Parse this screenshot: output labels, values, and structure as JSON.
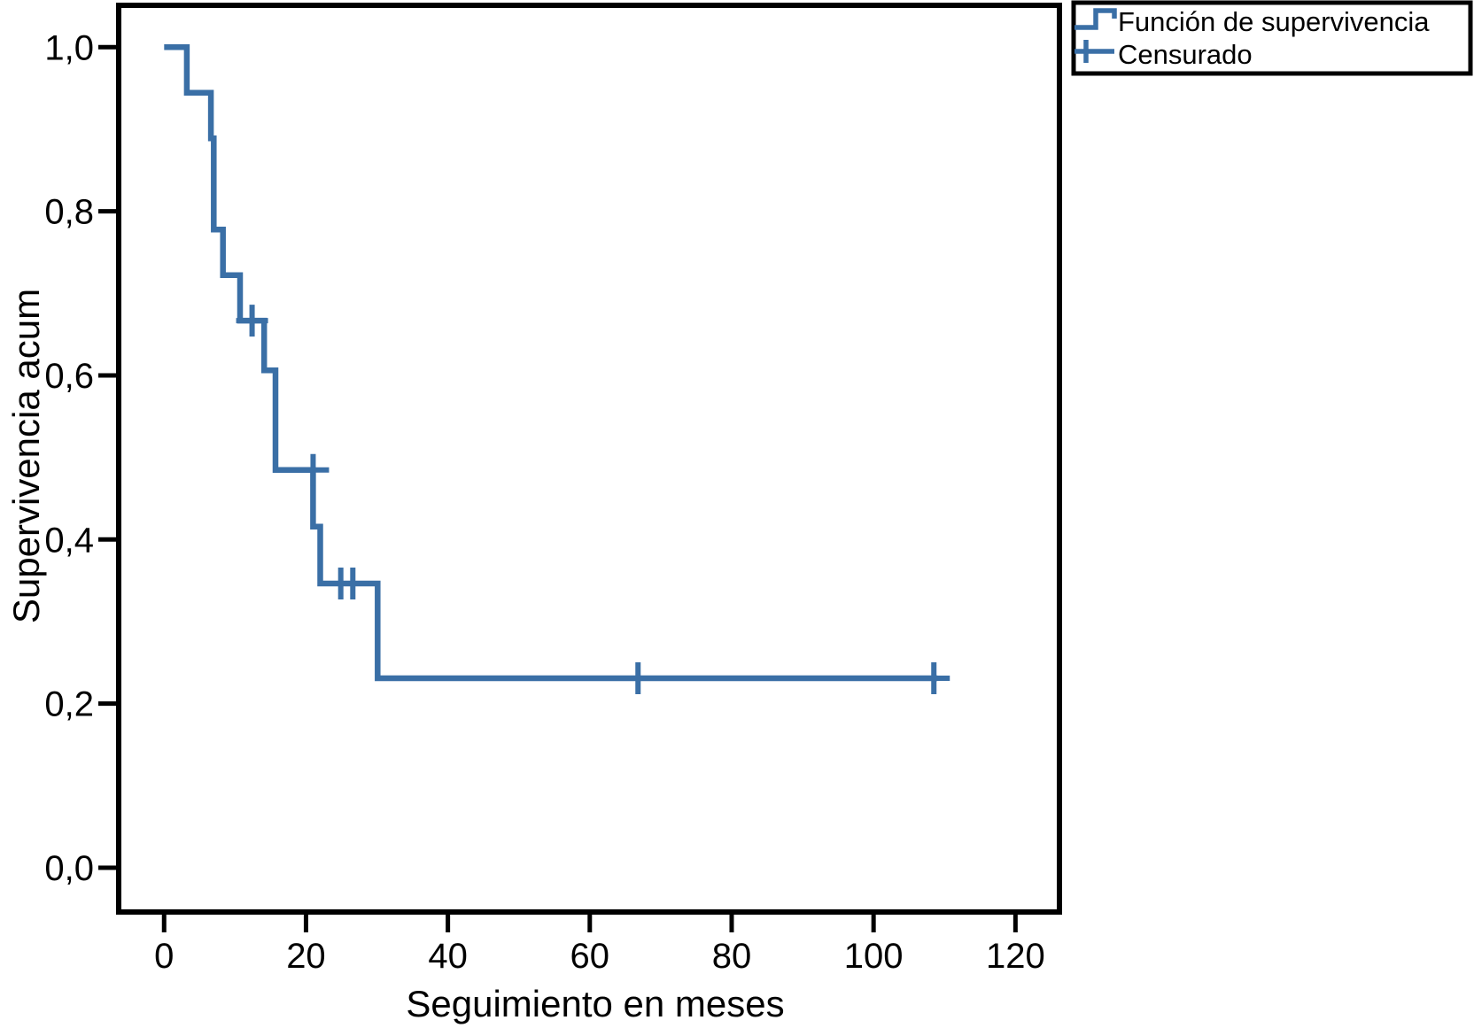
{
  "figure": {
    "background": "#FFFFFF",
    "axis_color": "#000000",
    "curve_color": "#3A6FA6"
  },
  "chart_data": {
    "type": "line",
    "subtype": "kaplan_meier_step",
    "title": "",
    "xlabel": "Seguimiento en meses",
    "ylabel": "Supervivencia acum",
    "grid": false,
    "legend_position": "top-right-outside",
    "xlim": [
      -6.4,
      126.2
    ],
    "ylim": [
      -0.054,
      1.051
    ],
    "x_ticks": [
      {
        "value": 0,
        "label": "0"
      },
      {
        "value": 20,
        "label": "20"
      },
      {
        "value": 40,
        "label": "40"
      },
      {
        "value": 60,
        "label": "60"
      },
      {
        "value": 80,
        "label": "80"
      },
      {
        "value": 100,
        "label": "100"
      },
      {
        "value": 120,
        "label": "120"
      }
    ],
    "y_ticks": [
      {
        "value": 0.0,
        "label": "0,0"
      },
      {
        "value": 0.2,
        "label": "0,2"
      },
      {
        "value": 0.4,
        "label": "0,4"
      },
      {
        "value": 0.6,
        "label": "0,6"
      },
      {
        "value": 0.8,
        "label": "0,8"
      },
      {
        "value": 1.0,
        "label": "1,0"
      }
    ],
    "series": [
      {
        "name": "Función de supervivencia",
        "color": "#3A6FA6",
        "style": "step",
        "points": [
          [
            0.0,
            1.0
          ],
          [
            3.2,
            1.0
          ],
          [
            3.2,
            0.9444
          ],
          [
            6.6,
            0.9444
          ],
          [
            6.6,
            0.8889
          ],
          [
            7.0,
            0.8889
          ],
          [
            7.0,
            0.7778
          ],
          [
            8.3,
            0.7778
          ],
          [
            8.3,
            0.7222
          ],
          [
            10.7,
            0.7222
          ],
          [
            10.7,
            0.6667
          ],
          [
            14.1,
            0.6667
          ],
          [
            14.1,
            0.6061
          ],
          [
            15.7,
            0.6061
          ],
          [
            15.7,
            0.4848
          ],
          [
            21.0,
            0.4848
          ],
          [
            21.0,
            0.4156
          ],
          [
            22.0,
            0.4156
          ],
          [
            22.0,
            0.3463
          ],
          [
            30.1,
            0.3463
          ],
          [
            30.1,
            0.2309
          ],
          [
            109.0,
            0.2309
          ]
        ]
      },
      {
        "name": "Censurado",
        "color": "#3A6FA6",
        "style": "plus-marker",
        "points": [
          [
            12.4,
            0.6667
          ],
          [
            21.0,
            0.4848
          ],
          [
            24.9,
            0.3463
          ],
          [
            26.6,
            0.3463
          ],
          [
            66.8,
            0.2309
          ],
          [
            108.5,
            0.2309
          ]
        ]
      }
    ],
    "legend": [
      {
        "label": "Función de supervivencia",
        "symbol": "step-line"
      },
      {
        "label": "Censurado",
        "symbol": "plus"
      }
    ]
  }
}
